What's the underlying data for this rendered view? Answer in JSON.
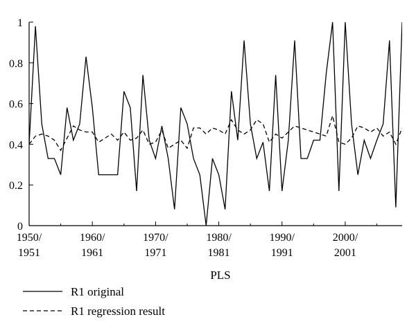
{
  "chart_data": {
    "type": "line",
    "xlabel": "PLS",
    "ylabel": "",
    "ylim": [
      0,
      1
    ],
    "yticks": [
      0,
      0.2,
      0.4,
      0.6,
      0.8,
      1
    ],
    "ytick_labels": [
      "0",
      "0.2",
      "0.4",
      "0.6",
      "0.8",
      "1"
    ],
    "xlim": [
      1950,
      2009
    ],
    "xticks": [
      1950,
      1960,
      1970,
      1980,
      1990,
      2000
    ],
    "xtick_labels": [
      [
        "1950/",
        "1951"
      ],
      [
        "1960/",
        "1961"
      ],
      [
        "1970/",
        "1971"
      ],
      [
        "1980/",
        "1981"
      ],
      [
        "1990/",
        "1991"
      ],
      [
        "2000/",
        "2001"
      ]
    ],
    "x": [
      1950,
      1951,
      1952,
      1953,
      1954,
      1955,
      1956,
      1957,
      1958,
      1959,
      1960,
      1961,
      1962,
      1963,
      1964,
      1965,
      1966,
      1967,
      1968,
      1969,
      1970,
      1971,
      1972,
      1973,
      1974,
      1975,
      1976,
      1977,
      1978,
      1979,
      1980,
      1981,
      1982,
      1983,
      1984,
      1985,
      1986,
      1987,
      1988,
      1989,
      1990,
      1991,
      1992,
      1993,
      1994,
      1995,
      1996,
      1997,
      1998,
      1999,
      2000,
      2001,
      2002,
      2003,
      2004,
      2005,
      2006,
      2007,
      2008,
      2009
    ],
    "series": [
      {
        "name": "R1 original",
        "dash": "solid",
        "values": [
          0.4,
          0.98,
          0.5,
          0.33,
          0.33,
          0.25,
          0.58,
          0.42,
          0.5,
          0.83,
          0.58,
          0.25,
          0.25,
          0.25,
          0.25,
          0.66,
          0.58,
          0.17,
          0.74,
          0.42,
          0.33,
          0.49,
          0.33,
          0.08,
          0.58,
          0.5,
          0.33,
          0.25,
          0.0,
          0.33,
          0.25,
          0.08,
          0.66,
          0.42,
          0.91,
          0.5,
          0.33,
          0.41,
          0.17,
          0.74,
          0.17,
          0.42,
          0.91,
          0.33,
          0.33,
          0.42,
          0.42,
          0.75,
          1.0,
          0.17,
          1.0,
          0.5,
          0.25,
          0.42,
          0.33,
          0.42,
          0.5,
          0.91,
          0.09,
          1.0
        ]
      },
      {
        "name": "R1 regression result",
        "dash": "dashed",
        "values": [
          0.4,
          0.44,
          0.45,
          0.44,
          0.42,
          0.37,
          0.43,
          0.49,
          0.47,
          0.46,
          0.46,
          0.41,
          0.43,
          0.45,
          0.42,
          0.46,
          0.42,
          0.43,
          0.47,
          0.4,
          0.41,
          0.47,
          0.38,
          0.4,
          0.42,
          0.38,
          0.48,
          0.48,
          0.45,
          0.48,
          0.47,
          0.45,
          0.52,
          0.47,
          0.45,
          0.47,
          0.52,
          0.5,
          0.41,
          0.45,
          0.43,
          0.46,
          0.49,
          0.48,
          0.47,
          0.46,
          0.45,
          0.44,
          0.54,
          0.41,
          0.4,
          0.43,
          0.49,
          0.48,
          0.46,
          0.48,
          0.44,
          0.46,
          0.4,
          0.48
        ]
      }
    ],
    "legend_position": "bottom-left",
    "grid": false
  }
}
